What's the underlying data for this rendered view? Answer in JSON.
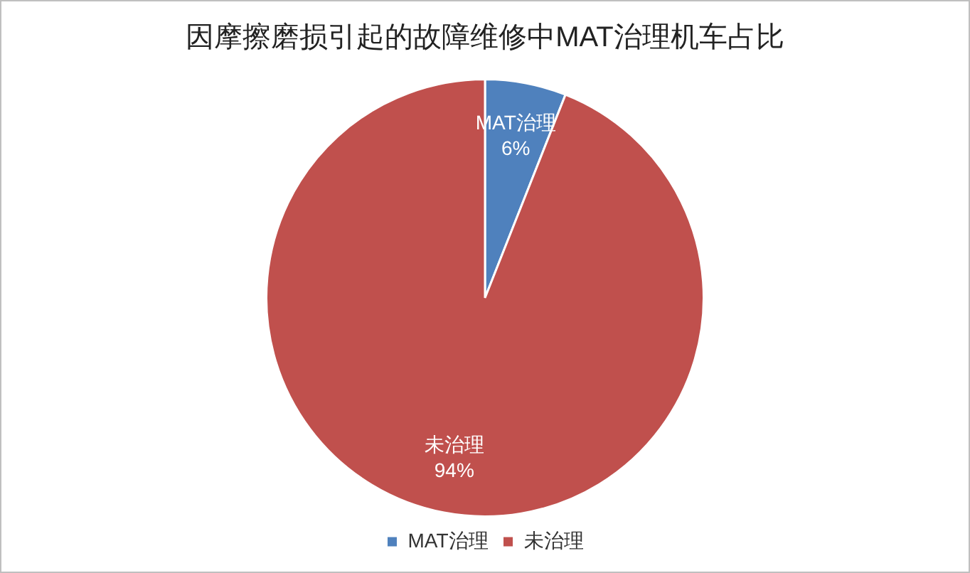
{
  "chart_data": {
    "type": "pie",
    "title": "因摩擦磨损引起的故障维修中MAT治理机车占比",
    "categories": [
      "MAT治理",
      "未治理"
    ],
    "values": [
      6,
      94
    ],
    "colors": [
      "#4f81bd",
      "#c0504d"
    ],
    "value_labels": [
      "6%",
      "94%"
    ],
    "legend": "bottom"
  }
}
